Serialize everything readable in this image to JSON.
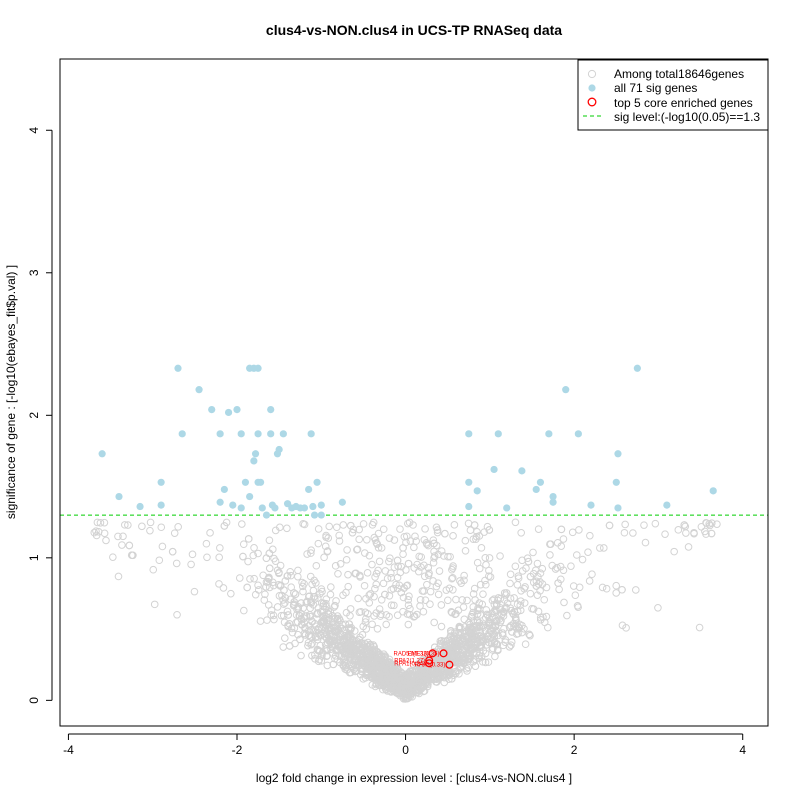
{
  "chart_data": {
    "type": "scatter",
    "title": "clus4-vs-NON.clus4 in UCS-TP RNASeq data",
    "xlabel": "log2 fold change in expression level : [clus4-vs-NON.clus4 ]",
    "ylabel": "significance of gene : [-log10(ebayes_fit$p.val) ]",
    "xlim": [
      -4.1,
      4.3
    ],
    "ylim": [
      -0.18,
      4.5
    ],
    "xticks": [
      "-4",
      "-2",
      "0",
      "2",
      "4"
    ],
    "xtick_values": [
      -4,
      -2,
      0,
      2,
      4
    ],
    "yticks": [
      "0",
      "1",
      "2",
      "3",
      "4"
    ],
    "ytick_values": [
      0,
      1,
      2,
      3,
      4
    ],
    "sig_threshold": 1.3,
    "legend": {
      "position": "top-right",
      "entries": [
        "Among total18646genes",
        "all 71 sig genes",
        "top 5 core enriched genes",
        "sig level:(-log10(0.05)==1.3"
      ]
    },
    "colors": {
      "background_genes": "#d3d3d3",
      "sig_genes": "#add8e6",
      "core_genes": "#ff0000",
      "sig_line": "#00cd00"
    },
    "series": [
      {
        "name": "all 71 sig genes",
        "points": [
          [
            -3.6,
            1.73
          ],
          [
            -3.4,
            1.43
          ],
          [
            -3.15,
            1.36
          ],
          [
            -2.9,
            1.53
          ],
          [
            -2.9,
            1.37
          ],
          [
            -2.7,
            2.33
          ],
          [
            -2.65,
            1.87
          ],
          [
            -2.45,
            2.18
          ],
          [
            -2.3,
            2.04
          ],
          [
            -2.2,
            1.87
          ],
          [
            -2.2,
            1.39
          ],
          [
            -2.15,
            1.48
          ],
          [
            -2.1,
            2.02
          ],
          [
            -2.05,
            1.37
          ],
          [
            -2.0,
            2.04
          ],
          [
            -1.95,
            1.87
          ],
          [
            -1.95,
            1.35
          ],
          [
            -1.9,
            1.53
          ],
          [
            -1.85,
            1.43
          ],
          [
            -1.85,
            2.33
          ],
          [
            -1.8,
            2.33
          ],
          [
            -1.8,
            1.68
          ],
          [
            -1.78,
            1.73
          ],
          [
            -1.75,
            2.33
          ],
          [
            -1.75,
            1.53
          ],
          [
            -1.75,
            1.87
          ],
          [
            -1.72,
            1.53
          ],
          [
            -1.7,
            1.35
          ],
          [
            -1.65,
            1.3
          ],
          [
            -1.6,
            2.04
          ],
          [
            -1.6,
            1.87
          ],
          [
            -1.58,
            1.37
          ],
          [
            -1.55,
            1.35
          ],
          [
            -1.52,
            1.73
          ],
          [
            -1.5,
            1.76
          ],
          [
            -1.45,
            1.87
          ],
          [
            -1.4,
            1.38
          ],
          [
            -1.35,
            1.35
          ],
          [
            -1.3,
            1.36
          ],
          [
            -1.25,
            1.35
          ],
          [
            -1.2,
            1.35
          ],
          [
            -1.15,
            1.48
          ],
          [
            -1.12,
            1.87
          ],
          [
            -1.1,
            1.36
          ],
          [
            -1.08,
            1.3
          ],
          [
            -1.05,
            1.53
          ],
          [
            -1.0,
            1.37
          ],
          [
            -0.75,
            1.39
          ],
          [
            0.75,
            1.87
          ],
          [
            0.75,
            1.53
          ],
          [
            0.75,
            1.36
          ],
          [
            0.85,
            1.47
          ],
          [
            1.05,
            1.62
          ],
          [
            1.1,
            1.87
          ],
          [
            1.2,
            1.35
          ],
          [
            1.38,
            1.61
          ],
          [
            1.55,
            1.48
          ],
          [
            1.6,
            1.53
          ],
          [
            1.7,
            1.87
          ],
          [
            1.75,
            1.43
          ],
          [
            1.75,
            1.39
          ],
          [
            1.9,
            2.18
          ],
          [
            2.05,
            1.87
          ],
          [
            2.2,
            1.37
          ],
          [
            2.5,
            1.53
          ],
          [
            2.52,
            1.73
          ],
          [
            2.52,
            1.35
          ],
          [
            2.75,
            2.33
          ],
          [
            3.1,
            1.37
          ],
          [
            3.65,
            1.47
          ],
          [
            -1.0,
            1.3
          ]
        ]
      },
      {
        "name": "top 5 core enriched genes",
        "points": [
          [
            0.32,
            0.33
          ],
          [
            0.45,
            0.33
          ],
          [
            0.28,
            0.28
          ],
          [
            0.28,
            0.26
          ],
          [
            0.52,
            0.25
          ]
        ],
        "labels": [
          "RAD51(1.33)",
          "EME1(0.35)",
          "RPA2(1.27)",
          "RPA1(0.24)",
          "RPA3(0.33)"
        ]
      }
    ],
    "background_point_count": 2200,
    "background_pattern": "volcano cloud, y rising with |x|, scattered up to ~1.25 below threshold"
  }
}
